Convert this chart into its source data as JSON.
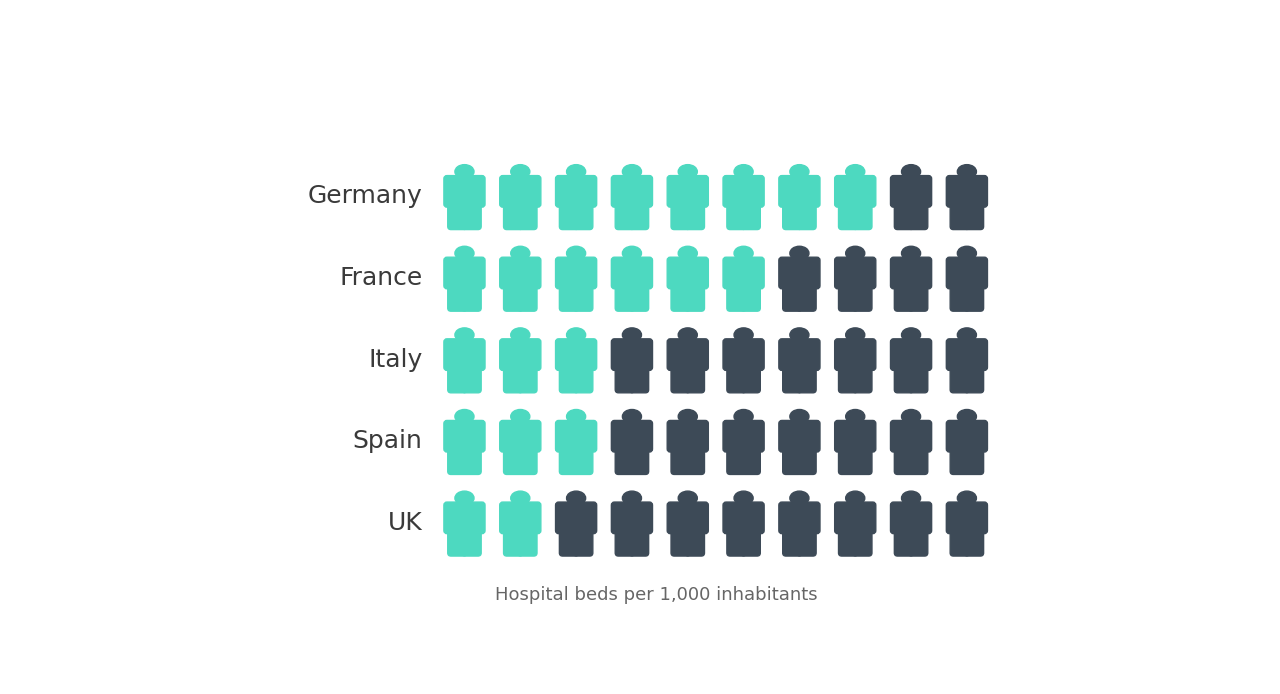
{
  "countries": [
    "Germany",
    "France",
    "Italy",
    "Spain",
    "UK"
  ],
  "teal_count": [
    8,
    6,
    3,
    3,
    2
  ],
  "total_count": [
    10,
    10,
    10,
    10,
    10
  ],
  "teal_color": "#4DD9C0",
  "dark_color": "#3D4A57",
  "background_color": "#FFFFFF",
  "label_color": "#3A3A3A",
  "caption": "Hospital beds per 1,000 inhabitants",
  "caption_color": "#666666",
  "caption_fontsize": 13,
  "label_fontsize": 18,
  "n_cols": 10,
  "figure_width": 12.8,
  "figure_height": 6.94
}
